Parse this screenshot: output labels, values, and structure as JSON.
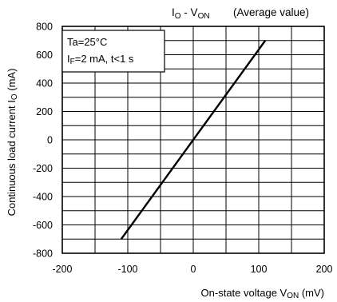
{
  "chart_data": {
    "type": "line",
    "title_main": "IO - VON",
    "title_parts": {
      "p1": "I",
      "p2": "O",
      "p3": " - V",
      "p4": "ON"
    },
    "title_note": "(Average value)",
    "ylabel_parts": {
      "p1": "Continuous load current I",
      "p2": "O",
      "p3": " (mA)"
    },
    "xlabel_parts": {
      "p1": "On-state voltage V",
      "p2": "ON",
      "p3": " (mV)"
    },
    "conditions": {
      "line1": "Ta=25°C",
      "line2_parts": {
        "p1": "I",
        "p2": "F",
        "p3": "=2 mA, t<1 s"
      }
    },
    "xlim": [
      -200,
      200
    ],
    "ylim": [
      -800,
      800
    ],
    "x_ticks": [
      -200,
      -100,
      0,
      100,
      200
    ],
    "y_ticks": [
      800,
      600,
      400,
      200,
      0,
      -200,
      -400,
      -600,
      -800
    ],
    "x_tick_labels": [
      "-200",
      "-100",
      "0",
      "100",
      "200"
    ],
    "y_tick_labels": [
      "800",
      "600",
      "400",
      "200",
      "0",
      "-200",
      "-400",
      "-600",
      "-800"
    ],
    "grid": true,
    "series": [
      {
        "x": [
          -110,
          110
        ],
        "y": [
          -700,
          700
        ]
      }
    ]
  }
}
